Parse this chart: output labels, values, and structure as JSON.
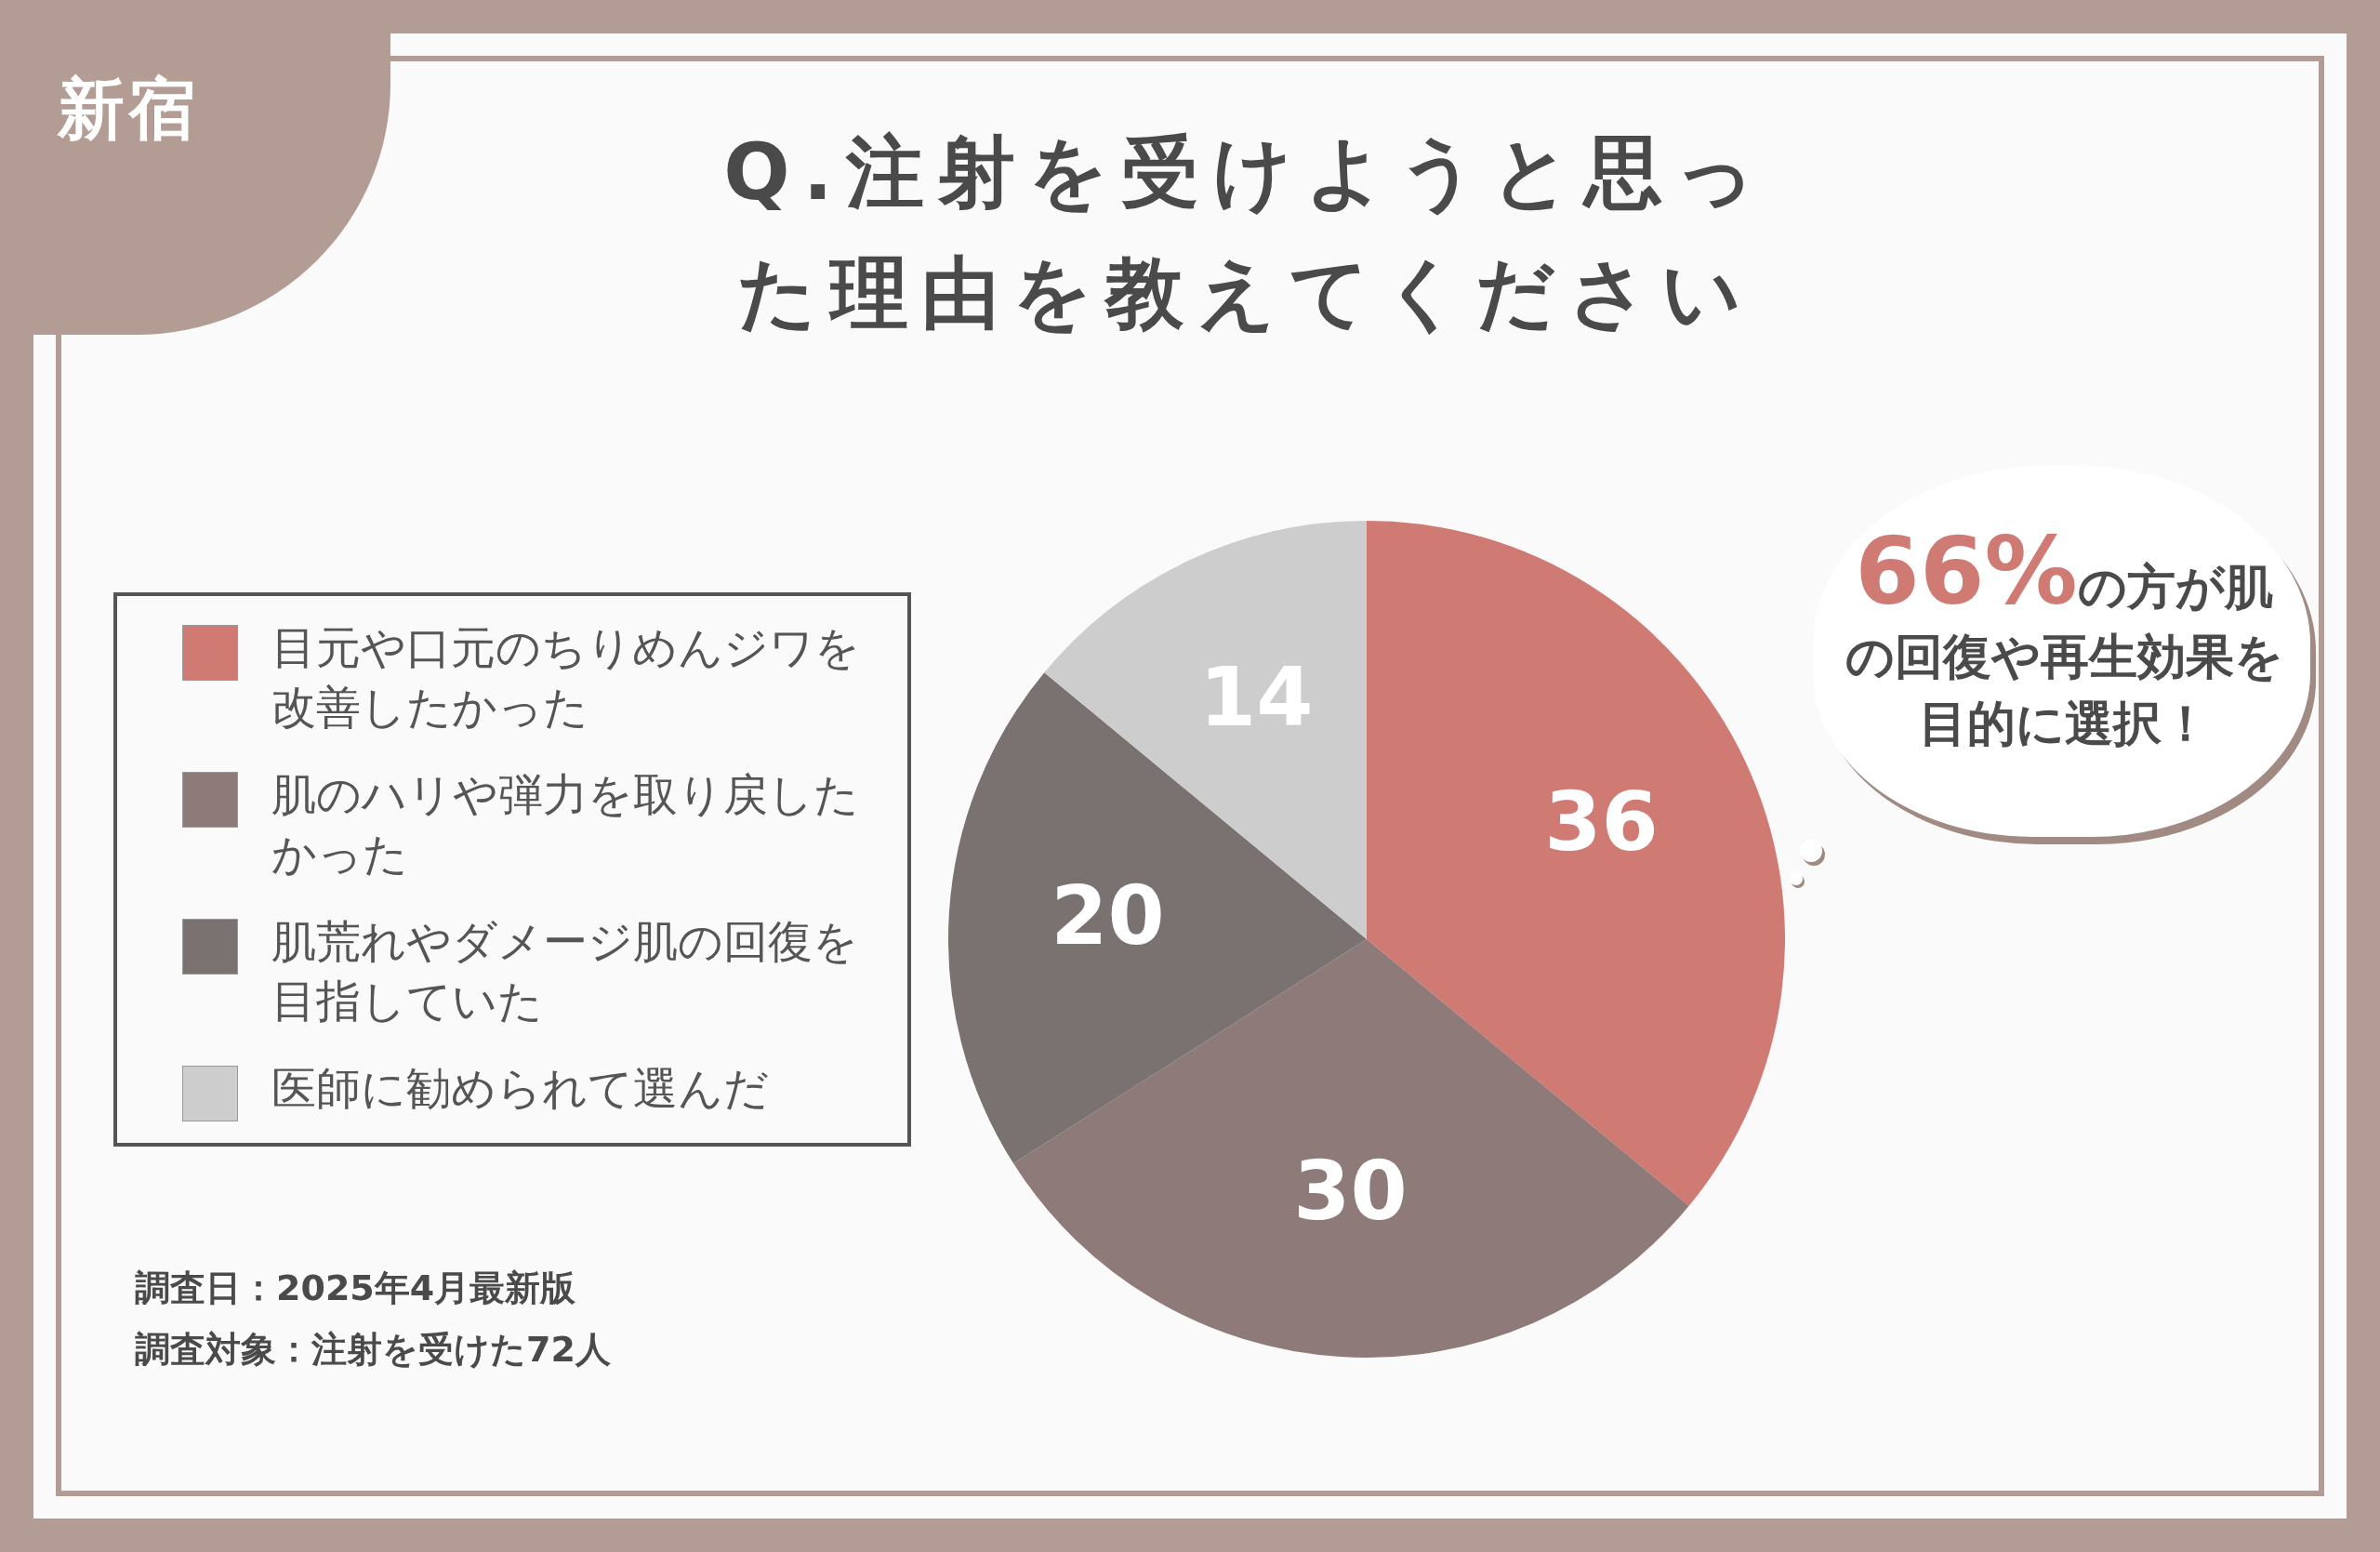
{
  "chart_data": {
    "type": "pie",
    "title": "Q.注射を受けようと思った理由を教えてください",
    "subtitle": "新宿",
    "categories": [
      "目元や口元のちりめんジワを改善したかった",
      "肌のハリや弾力を取り戻したかった",
      "肌荒れやダメージ肌の回復を目指していた",
      "医師に勧められて選んだ"
    ],
    "values": [
      36,
      30,
      20,
      14
    ],
    "colors": [
      "#d07a74",
      "#8e7a79",
      "#7a7270",
      "#cdcdcd"
    ],
    "data_labels": true,
    "legend": "left",
    "annotations": [
      "66%の方が肌の回復や再生効果を目的に選択！",
      "調査日：2025年4月最新版",
      "調査対象：注射を受けた72人"
    ]
  }
}
